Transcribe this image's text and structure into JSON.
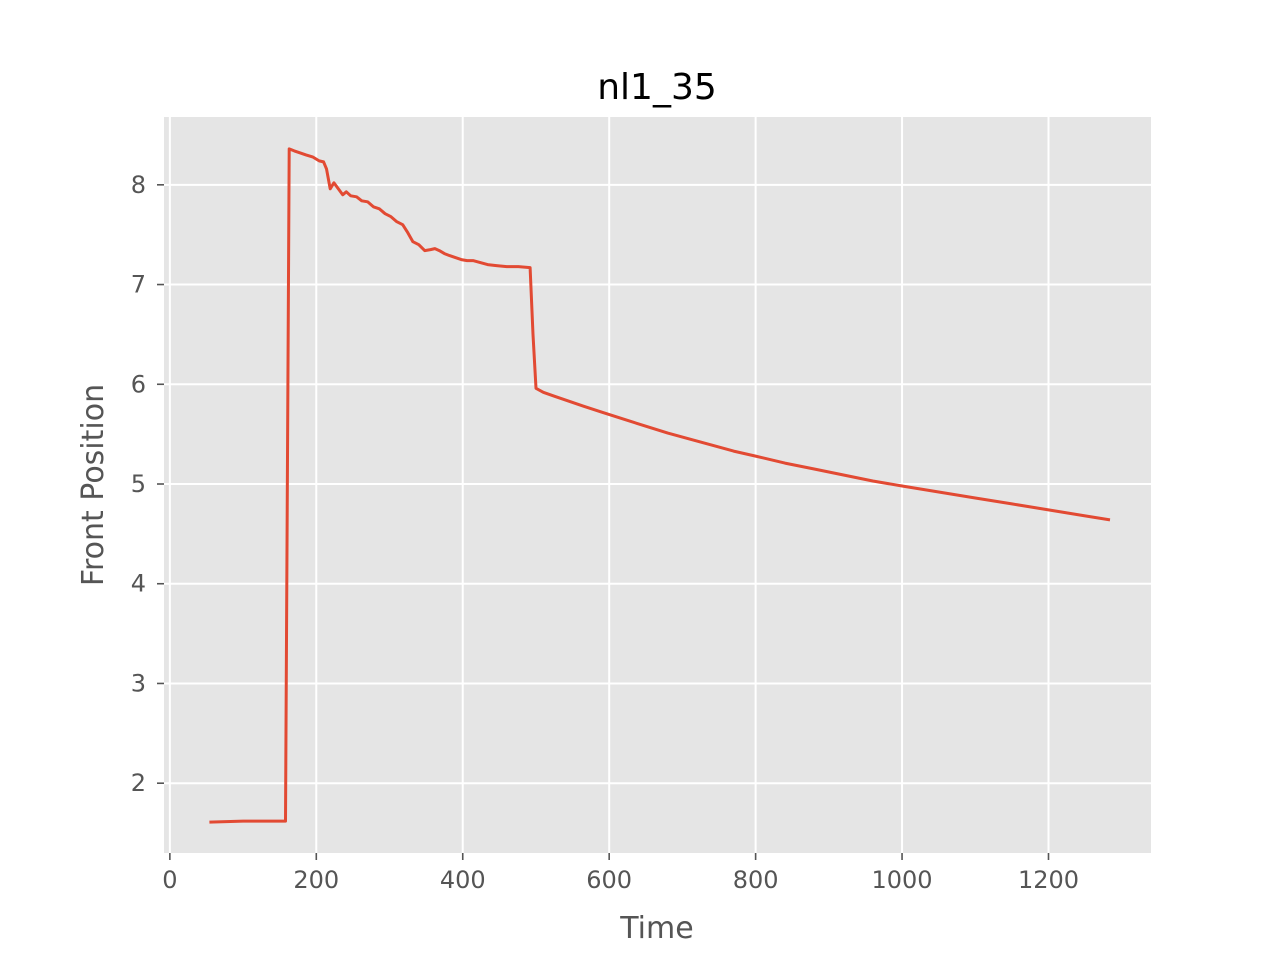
{
  "colors": {
    "figure_background": "#ffffff",
    "plot_background": "#e5e5e5",
    "grid": "#ffffff",
    "tick": "#555555",
    "text": "#555555",
    "title": "#000000",
    "series_line": "#e24a33"
  },
  "chart_data": {
    "type": "line",
    "title": "nl1_35",
    "xlabel": "Time",
    "ylabel": "Front Position",
    "xlim": [
      -8,
      1340
    ],
    "ylim": [
      1.3,
      8.68
    ],
    "grid": true,
    "legend": "none",
    "x_ticks": [
      0,
      200,
      400,
      600,
      800,
      1000,
      1200
    ],
    "x_tick_labels": [
      "0",
      "200",
      "400",
      "600",
      "800",
      "1000",
      "1200"
    ],
    "y_ticks": [
      2,
      3,
      4,
      5,
      6,
      7,
      8
    ],
    "y_tick_labels": [
      "2",
      "3",
      "4",
      "5",
      "6",
      "7",
      "8"
    ],
    "series": [
      {
        "x": [
          54,
          100,
          158,
          163,
          170,
          178,
          186,
          195,
          204,
          210,
          214,
          219,
          224,
          230,
          236,
          241,
          247,
          255,
          262,
          270,
          278,
          286,
          294,
          302,
          310,
          318,
          325,
          332,
          340,
          348,
          356,
          362,
          368,
          375,
          382,
          390,
          398,
          406,
          414,
          424,
          434,
          446,
          460,
          476,
          492,
          496,
          500,
          510,
          525,
          545,
          565,
          590,
          620,
          650,
          680,
          710,
          740,
          770,
          800,
          840,
          880,
          920,
          960,
          1000,
          1050,
          1100,
          1150,
          1200,
          1250,
          1284
        ],
        "y": [
          1.61,
          1.62,
          1.62,
          8.36,
          8.34,
          8.32,
          8.3,
          8.28,
          8.24,
          8.23,
          8.16,
          7.96,
          8.02,
          7.96,
          7.9,
          7.93,
          7.89,
          7.88,
          7.84,
          7.83,
          7.78,
          7.76,
          7.71,
          7.68,
          7.63,
          7.6,
          7.52,
          7.43,
          7.4,
          7.34,
          7.35,
          7.36,
          7.34,
          7.31,
          7.29,
          7.27,
          7.25,
          7.24,
          7.24,
          7.22,
          7.2,
          7.19,
          7.18,
          7.18,
          7.17,
          6.5,
          5.96,
          5.92,
          5.88,
          5.83,
          5.78,
          5.72,
          5.65,
          5.58,
          5.51,
          5.45,
          5.39,
          5.33,
          5.28,
          5.21,
          5.15,
          5.09,
          5.03,
          4.98,
          4.92,
          4.86,
          4.8,
          4.74,
          4.68,
          4.64
        ]
      }
    ]
  }
}
